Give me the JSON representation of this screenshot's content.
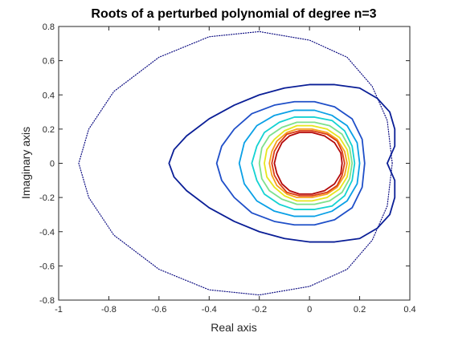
{
  "chart_data": {
    "type": "line",
    "title": "Roots of a perturbed polynomial of degree n=3",
    "xlabel": "Real axis",
    "ylabel": "Imaginary axis",
    "xlim": [
      -1,
      0.4
    ],
    "ylim": [
      -0.8,
      0.8
    ],
    "xticks": [
      -1,
      -0.8,
      -0.6,
      -0.4,
      -0.2,
      0,
      0.2,
      0.4
    ],
    "yticks": [
      -0.8,
      -0.6,
      -0.4,
      -0.2,
      0,
      0.2,
      0.4,
      0.6,
      0.8
    ],
    "xtick_labels": [
      "-1",
      "-0.8",
      "-0.6",
      "-0.4",
      "-0.2",
      "0",
      "0.2",
      "0.4"
    ],
    "ytick_labels": [
      "-0.8",
      "-0.6",
      "-0.4",
      "-0.2",
      "0",
      "0.2",
      "0.4",
      "0.6",
      "0.8"
    ],
    "grid": false,
    "series": [
      {
        "color": "#0a0a80",
        "style": "dotted",
        "x": [
          0.33,
          0.31,
          0.25,
          0.15,
          0.0,
          -0.2,
          -0.4,
          -0.6,
          -0.78,
          -0.88,
          -0.92,
          -0.88,
          -0.78,
          -0.6,
          -0.4,
          -0.2,
          0.0,
          0.15,
          0.25,
          0.31,
          0.33
        ],
        "y": [
          0.0,
          0.25,
          0.45,
          0.62,
          0.72,
          0.77,
          0.74,
          0.62,
          0.42,
          0.2,
          0.0,
          -0.2,
          -0.42,
          -0.62,
          -0.74,
          -0.77,
          -0.72,
          -0.62,
          -0.45,
          -0.25,
          0.0
        ]
      },
      {
        "color": "#0a1e96",
        "style": "solid",
        "x": [
          0.31,
          0.34,
          0.34,
          0.32,
          0.27,
          0.2,
          0.1,
          0.0,
          -0.1,
          -0.2,
          -0.3,
          -0.4,
          -0.49,
          -0.54,
          -0.56,
          -0.54,
          -0.49,
          -0.4,
          -0.3,
          -0.2,
          -0.1,
          0.0,
          0.1,
          0.2,
          0.27,
          0.32,
          0.34,
          0.34,
          0.31
        ],
        "y": [
          0.0,
          0.1,
          0.2,
          0.3,
          0.38,
          0.44,
          0.46,
          0.46,
          0.44,
          0.4,
          0.34,
          0.26,
          0.16,
          0.08,
          0.0,
          -0.08,
          -0.16,
          -0.26,
          -0.34,
          -0.4,
          -0.44,
          -0.46,
          -0.46,
          -0.44,
          -0.38,
          -0.3,
          -0.2,
          -0.1,
          0.0
        ]
      },
      {
        "color": "#1f4fc8",
        "style": "solid",
        "x": [
          0.22,
          0.21,
          0.17,
          0.1,
          0.02,
          -0.06,
          -0.14,
          -0.23,
          -0.3,
          -0.35,
          -0.37,
          -0.35,
          -0.3,
          -0.23,
          -0.14,
          -0.06,
          0.02,
          0.1,
          0.17,
          0.21,
          0.22
        ],
        "y": [
          0.0,
          0.14,
          0.26,
          0.33,
          0.36,
          0.36,
          0.34,
          0.29,
          0.2,
          0.1,
          0.0,
          -0.1,
          -0.2,
          -0.29,
          -0.34,
          -0.36,
          -0.36,
          -0.33,
          -0.26,
          -0.14,
          0.0
        ]
      },
      {
        "color": "#0aa0e6",
        "style": "solid",
        "x": [
          0.2,
          0.19,
          0.15,
          0.09,
          0.02,
          -0.06,
          -0.14,
          -0.21,
          -0.26,
          -0.28,
          -0.26,
          -0.21,
          -0.14,
          -0.06,
          0.02,
          0.09,
          0.15,
          0.19,
          0.2
        ],
        "y": [
          0.0,
          0.12,
          0.22,
          0.28,
          0.31,
          0.31,
          0.28,
          0.22,
          0.12,
          0.0,
          -0.12,
          -0.22,
          -0.28,
          -0.31,
          -0.31,
          -0.28,
          -0.22,
          -0.12,
          0.0
        ]
      },
      {
        "color": "#14d2d2",
        "style": "solid",
        "x": [
          0.18,
          0.17,
          0.14,
          0.09,
          0.02,
          -0.06,
          -0.12,
          -0.18,
          -0.21,
          -0.23,
          -0.21,
          -0.18,
          -0.12,
          -0.06,
          0.02,
          0.09,
          0.14,
          0.17,
          0.18
        ],
        "y": [
          0.0,
          0.1,
          0.19,
          0.25,
          0.27,
          0.27,
          0.24,
          0.18,
          0.1,
          0.0,
          -0.1,
          -0.18,
          -0.24,
          -0.27,
          -0.27,
          -0.25,
          -0.19,
          -0.1,
          0.0
        ]
      },
      {
        "color": "#7ee08c",
        "style": "solid",
        "x": [
          0.17,
          0.16,
          0.13,
          0.08,
          0.02,
          -0.05,
          -0.11,
          -0.16,
          -0.19,
          -0.2,
          -0.19,
          -0.16,
          -0.11,
          -0.05,
          0.02,
          0.08,
          0.13,
          0.16,
          0.17
        ],
        "y": [
          0.0,
          0.09,
          0.17,
          0.22,
          0.24,
          0.24,
          0.21,
          0.16,
          0.09,
          0.0,
          -0.09,
          -0.16,
          -0.21,
          -0.24,
          -0.24,
          -0.22,
          -0.17,
          -0.09,
          0.0
        ]
      },
      {
        "color": "#e6e61e",
        "style": "solid",
        "x": [
          0.16,
          0.15,
          0.12,
          0.07,
          0.01,
          -0.05,
          -0.1,
          -0.14,
          -0.17,
          -0.18,
          -0.17,
          -0.14,
          -0.1,
          -0.05,
          0.01,
          0.07,
          0.12,
          0.15,
          0.16
        ],
        "y": [
          0.0,
          0.08,
          0.15,
          0.2,
          0.22,
          0.22,
          0.19,
          0.14,
          0.08,
          0.0,
          -0.08,
          -0.14,
          -0.19,
          -0.22,
          -0.22,
          -0.2,
          -0.15,
          -0.08,
          0.0
        ]
      },
      {
        "color": "#f5a01e",
        "style": "solid",
        "x": [
          0.15,
          0.14,
          0.11,
          0.07,
          0.01,
          -0.05,
          -0.09,
          -0.13,
          -0.15,
          -0.16,
          -0.15,
          -0.13,
          -0.09,
          -0.05,
          0.01,
          0.07,
          0.11,
          0.14,
          0.15
        ],
        "y": [
          0.0,
          0.07,
          0.14,
          0.18,
          0.2,
          0.2,
          0.18,
          0.13,
          0.07,
          0.0,
          -0.07,
          -0.13,
          -0.18,
          -0.2,
          -0.2,
          -0.18,
          -0.14,
          -0.07,
          0.0
        ]
      },
      {
        "color": "#dc3c14",
        "style": "solid",
        "x": [
          0.14,
          0.13,
          0.11,
          0.07,
          0.01,
          -0.04,
          -0.09,
          -0.12,
          -0.14,
          -0.15,
          -0.14,
          -0.12,
          -0.09,
          -0.04,
          0.01,
          0.07,
          0.11,
          0.13,
          0.14
        ],
        "y": [
          0.0,
          0.07,
          0.13,
          0.17,
          0.19,
          0.19,
          0.17,
          0.12,
          0.07,
          0.0,
          -0.07,
          -0.12,
          -0.17,
          -0.19,
          -0.19,
          -0.17,
          -0.13,
          -0.07,
          0.0
        ]
      },
      {
        "color": "#b40a0a",
        "style": "solid",
        "x": [
          0.13,
          0.125,
          0.1,
          0.06,
          0.01,
          -0.04,
          -0.08,
          -0.11,
          -0.13,
          -0.14,
          -0.13,
          -0.11,
          -0.08,
          -0.04,
          0.01,
          0.06,
          0.1,
          0.125,
          0.13
        ],
        "y": [
          0.0,
          0.06,
          0.12,
          0.16,
          0.18,
          0.18,
          0.16,
          0.12,
          0.06,
          0.0,
          -0.06,
          -0.12,
          -0.16,
          -0.18,
          -0.18,
          -0.16,
          -0.12,
          -0.06,
          0.0
        ]
      }
    ]
  }
}
